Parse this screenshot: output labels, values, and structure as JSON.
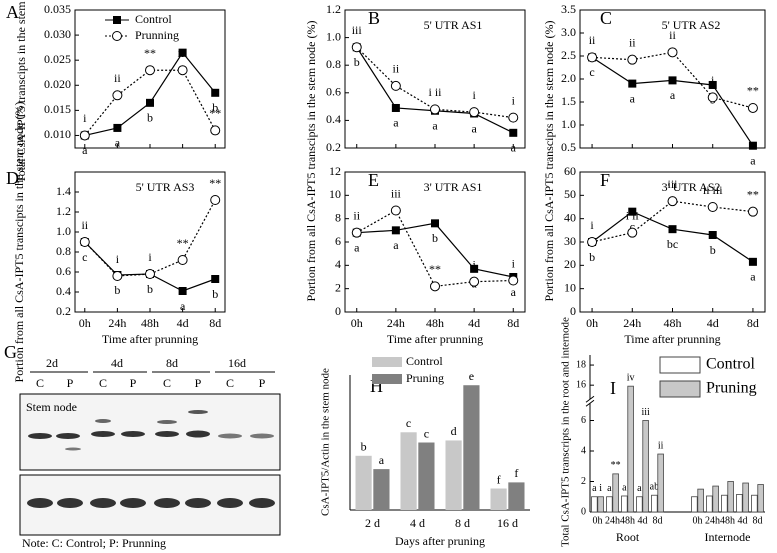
{
  "chart_data": [
    {
      "type": "line",
      "panel": "A",
      "ylabel": "Total CsA-IPT5 transcipts in the stem node",
      "ylim": [
        0.0075,
        0.035
      ],
      "yticks": [
        {
          "value": 0.01,
          "label": "0.010"
        },
        {
          "value": 0.015,
          "label": "0.015"
        },
        {
          "value": 0.02,
          "label": "0.020"
        },
        {
          "value": 0.025,
          "label": "0.025"
        },
        {
          "value": 0.03,
          "label": "0.030"
        },
        {
          "value": 0.035,
          "label": "0.035"
        }
      ],
      "legend": "upper left",
      "series": [
        {
          "name": "Control",
          "color": "#000000",
          "marker": "square",
          "dashed": false,
          "values": [
            0.01,
            0.0115,
            0.0165,
            0.0265,
            0.0185
          ],
          "point_labels": [
            "a",
            "a",
            "b",
            "c",
            "b"
          ]
        },
        {
          "name": "Prunning",
          "color": "#000000",
          "marker": "circle",
          "dashed": true,
          "values": [
            0.01,
            0.018,
            0.023,
            0.023,
            0.011
          ],
          "point_labels": [
            "i",
            "ii",
            "**",
            "iii",
            "**"
          ]
        }
      ]
    },
    {
      "type": "line",
      "panel": "B",
      "title": "5' UTR AS1",
      "ylim": [
        0.2,
        1.2
      ],
      "yticks": [
        0.2,
        0.4,
        0.6,
        0.8,
        {
          "value": 1,
          "label": "1.0"
        },
        1.2
      ],
      "series": [
        {
          "name": "Control",
          "color": "#000000",
          "marker": "square",
          "dashed": false,
          "values": [
            0.93,
            0.49,
            0.47,
            0.45,
            0.31
          ],
          "point_labels": [
            "b",
            "a",
            "a",
            "a",
            "a"
          ]
        },
        {
          "name": "Prunning",
          "color": "#000000",
          "marker": "circle",
          "dashed": true,
          "values": [
            0.93,
            0.65,
            0.48,
            0.46,
            0.42
          ],
          "point_labels": [
            "iii",
            "ii",
            "i ii",
            "i",
            "i"
          ]
        }
      ]
    },
    {
      "type": "line",
      "panel": "C",
      "title": "5' UTR AS2",
      "ylim": [
        0.5,
        3.5
      ],
      "yticks": [
        0.5,
        {
          "value": 1,
          "label": "1.0"
        },
        1.5,
        {
          "value": 2,
          "label": "2.0"
        },
        2.5,
        {
          "value": 3,
          "label": "3.0"
        },
        3.5
      ],
      "series": [
        {
          "name": "Control",
          "color": "#000000",
          "marker": "square",
          "dashed": false,
          "values": [
            2.47,
            1.9,
            1.97,
            1.87,
            0.55
          ],
          "point_labels": [
            "c",
            "a",
            "a",
            "b",
            "a"
          ]
        },
        {
          "name": "Prunning",
          "color": "#000000",
          "marker": "circle",
          "dashed": true,
          "values": [
            2.47,
            2.42,
            2.58,
            1.6,
            1.37
          ],
          "point_labels": [
            "ii",
            "ii",
            "ii",
            "i",
            "**"
          ]
        }
      ]
    },
    {
      "type": "line",
      "panel": "D",
      "title": "5' UTR AS3",
      "ylabel": "Portion from all CsA-IPT5 transcipts in the stem node (%)",
      "xlabel": "Time after prunning",
      "categories": [
        "0h",
        "24h",
        "48h",
        "4d",
        "8d"
      ],
      "ylim": [
        0.2,
        1.6
      ],
      "yticks": [
        0.2,
        0.4,
        0.6,
        0.8,
        {
          "value": 1,
          "label": "1.0"
        },
        1.2,
        1.4
      ],
      "series": [
        {
          "name": "Control",
          "color": "#000000",
          "marker": "square",
          "dashed": false,
          "values": [
            0.9,
            0.57,
            0.58,
            0.41,
            0.53
          ],
          "point_labels": [
            "c",
            "b",
            "b",
            "a",
            "b"
          ]
        },
        {
          "name": "Prunning",
          "color": "#000000",
          "marker": "circle",
          "dashed": true,
          "values": [
            0.9,
            0.56,
            0.58,
            0.72,
            1.32
          ],
          "point_labels": [
            "ii",
            "i",
            "i",
            "**",
            "**"
          ]
        }
      ]
    },
    {
      "type": "line",
      "panel": "E",
      "title": "3' UTR AS1",
      "ylabel": "Portion from all CsA-IPT5 transcipts in the stem node (%)",
      "xlabel": "Time after prunning",
      "categories": [
        "0h",
        "24h",
        "48h",
        "4d",
        "8d"
      ],
      "ylim": [
        0,
        12
      ],
      "yticks": [
        0,
        2,
        4,
        6,
        8,
        10,
        12
      ],
      "series": [
        {
          "name": "Control",
          "color": "#000000",
          "marker": "square",
          "dashed": false,
          "values": [
            6.8,
            7.0,
            7.6,
            3.7,
            3.0
          ],
          "point_labels": [
            "a",
            "a",
            "b",
            "a",
            "a"
          ]
        },
        {
          "name": "Prunning",
          "color": "#000000",
          "marker": "circle",
          "dashed": true,
          "values": [
            6.8,
            8.7,
            2.2,
            2.6,
            2.7
          ],
          "point_labels": [
            "ii",
            "iii",
            "**",
            "i",
            "i"
          ]
        }
      ]
    },
    {
      "type": "line",
      "panel": "F",
      "title": "3' UTR AS2",
      "ylabel": "Portion from all CsA-IPT5 transcipts in the stem node (%)",
      "xlabel": "Time after prunning",
      "categories": [
        "0h",
        "24h",
        "48h",
        "4d",
        "8d"
      ],
      "ylim": [
        0,
        60
      ],
      "yticks": [
        0,
        10,
        20,
        30,
        40,
        50,
        60
      ],
      "series": [
        {
          "name": "Control",
          "color": "#000000",
          "marker": "square",
          "dashed": false,
          "values": [
            30,
            43,
            35.5,
            33,
            21.5
          ],
          "point_labels": [
            "b",
            "c",
            "bc",
            "b",
            "a"
          ]
        },
        {
          "name": "Prunning",
          "color": "#000000",
          "marker": "circle",
          "dashed": true,
          "values": [
            30,
            34,
            47.5,
            45,
            43
          ],
          "point_labels": [
            "i",
            "i ii",
            "iii",
            "ii iii",
            "**"
          ]
        }
      ]
    },
    {
      "type": "bar",
      "panel": "H",
      "ylabel": "CsA-IPT5/Actin in the stem node",
      "xlabel": "Days after pruning",
      "categories": [
        "2 d",
        "4 d",
        "8 d",
        "16 d"
      ],
      "ylim": [
        0,
        6.6
      ],
      "legend": "upper left",
      "series": [
        {
          "name": "Control",
          "color": "#c8c8c8",
          "values": [
            2.65,
            3.8,
            3.4,
            1.05
          ],
          "point_labels": [
            "b",
            "c",
            "d",
            "f"
          ]
        },
        {
          "name": "Pruning",
          "color": "#808080",
          "values": [
            2.0,
            3.3,
            6.1,
            1.35
          ],
          "point_labels": [
            "a",
            "c",
            "e",
            "f"
          ]
        }
      ]
    },
    {
      "type": "bar",
      "panel": "I",
      "ylabel": "Total CsA-IPT5 transcripts in the root and internode",
      "categories": [
        "0h",
        "24h",
        "48h",
        "4d",
        "8d",
        "0h",
        "24h",
        "48h",
        "4d",
        "8d"
      ],
      "groups": [
        "Root",
        "Internode"
      ],
      "ylim": [
        0,
        19
      ],
      "axis_break": [
        7,
        14.8
      ],
      "yticks": [
        0,
        2,
        4,
        6,
        16,
        18
      ],
      "legend": "upper right",
      "series": [
        {
          "name": "Control",
          "color": "#ffffff",
          "values": [
            1.0,
            1.0,
            1.05,
            1.0,
            1.1,
            1.0,
            1.05,
            1.1,
            1.15,
            1.1
          ],
          "point_labels": [
            "a",
            "a",
            "a",
            "a",
            "ab",
            null,
            null,
            null,
            null,
            null
          ]
        },
        {
          "name": "Pruning",
          "color": "#c8c8c8",
          "values": [
            1.0,
            2.5,
            15.9,
            6.0,
            3.8,
            1.5,
            1.7,
            2.0,
            1.9,
            1.8
          ],
          "point_labels": [
            "i",
            "**",
            "iv",
            "iii",
            "ii",
            null,
            null,
            null,
            null,
            null
          ]
        }
      ]
    }
  ],
  "blot": {
    "panel": "G",
    "days": [
      "2d",
      "4d",
      "8d",
      "16d"
    ],
    "lanes": [
      "C",
      "P",
      "C",
      "P",
      "C",
      "P",
      "C",
      "P"
    ],
    "row_label": "Stem node",
    "note": "Note: C: Control; P: Prunning"
  }
}
